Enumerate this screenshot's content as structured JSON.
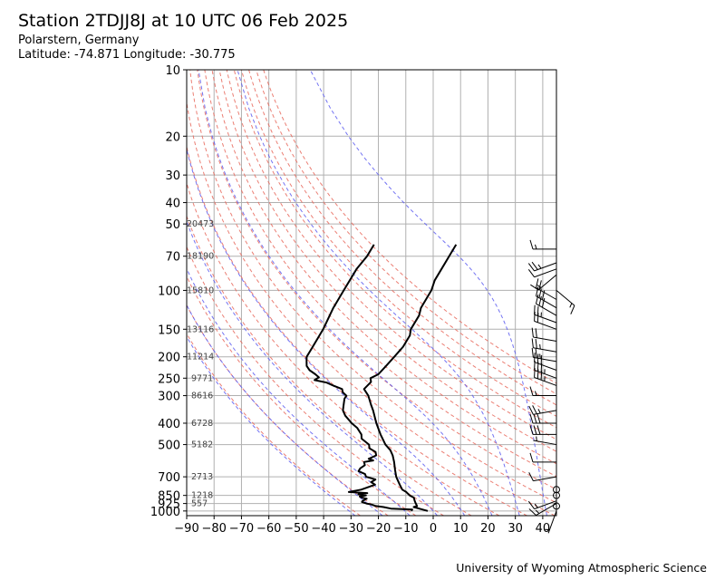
{
  "header": {
    "title": "Station 2TDJJ8J at 10 UTC 06 Feb 2025",
    "location": "Polarstern, Germany",
    "coordinates": "Latitude: -74.871 Longitude: -30.775"
  },
  "footer": {
    "credit": "University of Wyoming Atmospheric Science"
  },
  "chart_data": {
    "type": "line",
    "title": "Station 2TDJJ8J at 10 UTC 06 Feb 2025",
    "xlabel": "",
    "ylabel": "",
    "skew_t": true,
    "y_scale": "log",
    "y_inverted": true,
    "xlim": [
      -90,
      45
    ],
    "ylim": [
      1050,
      10
    ],
    "x_ticks": [
      -90,
      -80,
      -70,
      -60,
      -50,
      -40,
      -30,
      -20,
      -10,
      0,
      10,
      20,
      30,
      40
    ],
    "y_ticks": [
      10,
      20,
      30,
      40,
      50,
      70,
      100,
      150,
      200,
      250,
      300,
      400,
      500,
      700,
      850,
      925,
      1000
    ],
    "grid": true,
    "height_labels": [
      {
        "p": 50,
        "h": "20473"
      },
      {
        "p": 70,
        "h": "18190"
      },
      {
        "p": 100,
        "h": "15810"
      },
      {
        "p": 150,
        "h": "13116"
      },
      {
        "p": 200,
        "h": "11214"
      },
      {
        "p": 250,
        "h": "9771"
      },
      {
        "p": 300,
        "h": "8616"
      },
      {
        "p": 400,
        "h": "6728"
      },
      {
        "p": 500,
        "h": "5182"
      },
      {
        "p": 700,
        "h": "2713"
      },
      {
        "p": 850,
        "h": "1218"
      },
      {
        "p": 925,
        "h": "557"
      }
    ],
    "series": [
      {
        "role": "temperature",
        "color": "#000000",
        "p": [
          1000,
          980,
          960,
          950,
          925,
          900,
          870,
          850,
          820,
          800,
          760,
          720,
          700,
          650,
          600,
          560,
          530,
          500,
          450,
          400,
          350,
          330,
          300,
          280,
          260,
          250,
          240,
          220,
          200,
          180,
          160,
          150,
          130,
          120,
          100,
          90,
          80,
          70,
          62
        ],
        "t": [
          -3,
          -6,
          -9,
          -8,
          -9,
          -10,
          -11,
          -13,
          -15,
          -17,
          -19,
          -21,
          -22,
          -24,
          -26,
          -28,
          -30,
          -33,
          -37,
          -41,
          -45,
          -47,
          -50,
          -53,
          -52,
          -53,
          -51,
          -50,
          -49,
          -48,
          -48,
          -49,
          -49,
          -50,
          -50,
          -51,
          -51,
          -51,
          -51
        ]
      },
      {
        "role": "dewpoint",
        "color": "#000000",
        "p": [
          1000,
          985,
          975,
          960,
          950,
          935,
          925,
          910,
          900,
          880,
          870,
          860,
          850,
          840,
          830,
          820,
          800,
          780,
          760,
          740,
          720,
          700,
          680,
          660,
          640,
          620,
          600,
          590,
          580,
          560,
          540,
          520,
          500,
          470,
          450,
          420,
          400,
          370,
          350,
          330,
          310,
          300,
          290,
          280,
          270,
          262,
          255,
          248,
          240,
          230,
          220,
          210,
          200,
          180,
          150,
          120,
          100,
          80,
          70,
          62
        ],
        "t": [
          -9,
          -9,
          -17,
          -20,
          -23,
          -25,
          -27,
          -29,
          -29,
          -28,
          -30,
          -31,
          -29,
          -32,
          -29,
          -36,
          -32,
          -30,
          -28,
          -30,
          -29,
          -33,
          -34,
          -37,
          -37,
          -36,
          -37,
          -34,
          -36,
          -34,
          -35,
          -38,
          -39,
          -43,
          -44,
          -47,
          -50,
          -54,
          -56,
          -57,
          -58,
          -58,
          -60,
          -61,
          -65,
          -68,
          -73,
          -72,
          -74,
          -77,
          -79,
          -80,
          -81,
          -81,
          -81,
          -82,
          -82,
          -82,
          -81,
          -81
        ]
      }
    ],
    "wind_barbs": [
      {
        "p": 1000,
        "dir": 200,
        "kt": 5
      },
      {
        "p": 950,
        "dir": 0,
        "kt": 0
      },
      {
        "p": 925,
        "dir": 240,
        "kt": 15
      },
      {
        "p": 900,
        "dir": 250,
        "kt": 15
      },
      {
        "p": 850,
        "dir": 0,
        "kt": 0
      },
      {
        "p": 800,
        "dir": 0,
        "kt": 0
      },
      {
        "p": 700,
        "dir": 260,
        "kt": 10
      },
      {
        "p": 600,
        "dir": 270,
        "kt": 10
      },
      {
        "p": 500,
        "dir": 280,
        "kt": 5
      },
      {
        "p": 450,
        "dir": 270,
        "kt": 30
      },
      {
        "p": 400,
        "dir": 270,
        "kt": 30
      },
      {
        "p": 350,
        "dir": 260,
        "kt": 25
      },
      {
        "p": 300,
        "dir": 270,
        "kt": 15
      },
      {
        "p": 270,
        "dir": 290,
        "kt": 35
      },
      {
        "p": 250,
        "dir": 290,
        "kt": 35
      },
      {
        "p": 230,
        "dir": 290,
        "kt": 30
      },
      {
        "p": 210,
        "dir": 280,
        "kt": 25
      },
      {
        "p": 190,
        "dir": 280,
        "kt": 25
      },
      {
        "p": 170,
        "dir": 280,
        "kt": 20
      },
      {
        "p": 150,
        "dir": 290,
        "kt": 20
      },
      {
        "p": 140,
        "dir": 290,
        "kt": 25
      },
      {
        "p": 130,
        "dir": 300,
        "kt": 30
      },
      {
        "p": 120,
        "dir": 300,
        "kt": 30
      },
      {
        "p": 110,
        "dir": 300,
        "kt": 20
      },
      {
        "p": 100,
        "dir": 130,
        "kt": 15
      },
      {
        "p": 85,
        "dir": 230,
        "kt": 15
      },
      {
        "p": 80,
        "dir": 250,
        "kt": 10
      },
      {
        "p": 75,
        "dir": 250,
        "kt": 25
      },
      {
        "p": 65,
        "dir": 270,
        "kt": 15
      }
    ]
  }
}
